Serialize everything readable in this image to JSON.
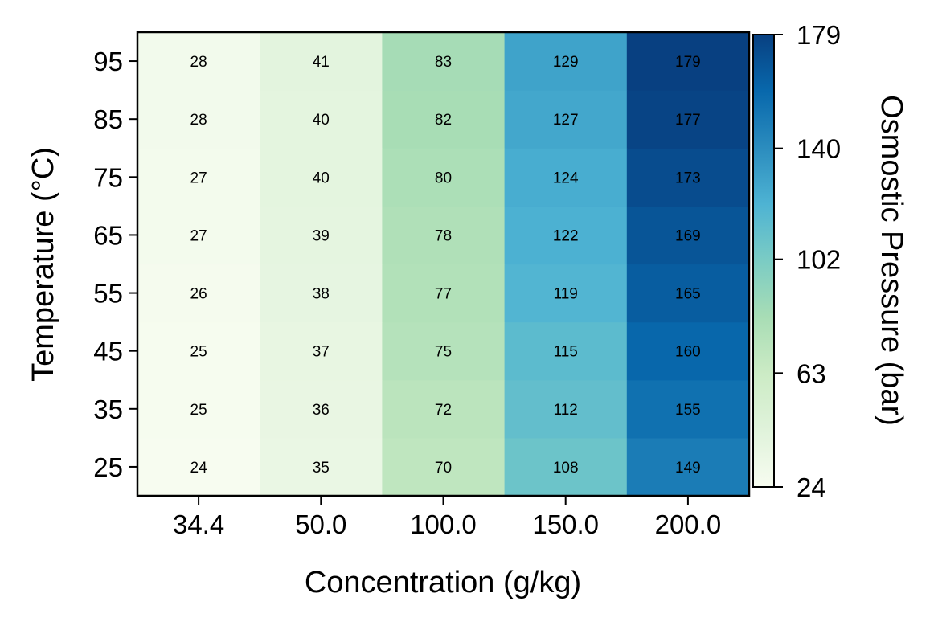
{
  "chart_data": {
    "type": "heatmap",
    "title": "",
    "xlabel": "Concentration (g/kg)",
    "ylabel": "Temperature (°C)",
    "x_categories": [
      "34.4",
      "50.0",
      "100.0",
      "150.0",
      "200.0"
    ],
    "y_categories": [
      "25",
      "35",
      "45",
      "55",
      "65",
      "75",
      "85",
      "95"
    ],
    "values": [
      [
        24,
        35,
        70,
        108,
        149
      ],
      [
        25,
        36,
        72,
        112,
        155
      ],
      [
        25,
        37,
        75,
        115,
        160
      ],
      [
        26,
        38,
        77,
        119,
        165
      ],
      [
        27,
        39,
        78,
        122,
        169
      ],
      [
        27,
        40,
        80,
        124,
        173
      ],
      [
        28,
        40,
        82,
        127,
        177
      ],
      [
        28,
        41,
        83,
        129,
        179
      ]
    ],
    "colorbar": {
      "label": "Osmostic Pressure (bar)",
      "min": 24,
      "max": 179,
      "ticks": [
        "24",
        "63",
        "102",
        "140",
        "179"
      ],
      "colormap": "GnBu"
    },
    "grid": false
  }
}
